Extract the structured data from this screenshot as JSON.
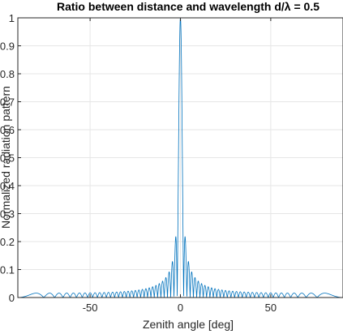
{
  "chart_data": {
    "type": "line",
    "title": "Ratio between distance and wavelength d/λ = 0.5",
    "xlabel": "Zenith angle [deg]",
    "ylabel": "Normalized radiation pattern",
    "xlim": [
      -90,
      90
    ],
    "ylim": [
      0,
      1
    ],
    "xticks": [
      -50,
      0,
      50
    ],
    "xtick_labels": [
      "-50",
      "0",
      "50"
    ],
    "yticks": [
      0,
      0.1,
      0.2,
      0.3,
      0.4,
      0.5,
      0.6,
      0.7,
      0.8,
      0.9,
      1
    ],
    "ytick_labels": [
      "0",
      "0.1",
      "0.2",
      "0.3",
      "0.4",
      "0.5",
      "0.6",
      "0.7",
      "0.8",
      "0.9",
      "1"
    ],
    "grid": true,
    "series": [
      {
        "color": "#0072bd",
        "array_elements": 64,
        "element_spacing_wavelengths": 0.5
      }
    ]
  },
  "colors": {
    "axes": "#262626",
    "grid": "#e6e6e6",
    "line": "#0072bd"
  }
}
